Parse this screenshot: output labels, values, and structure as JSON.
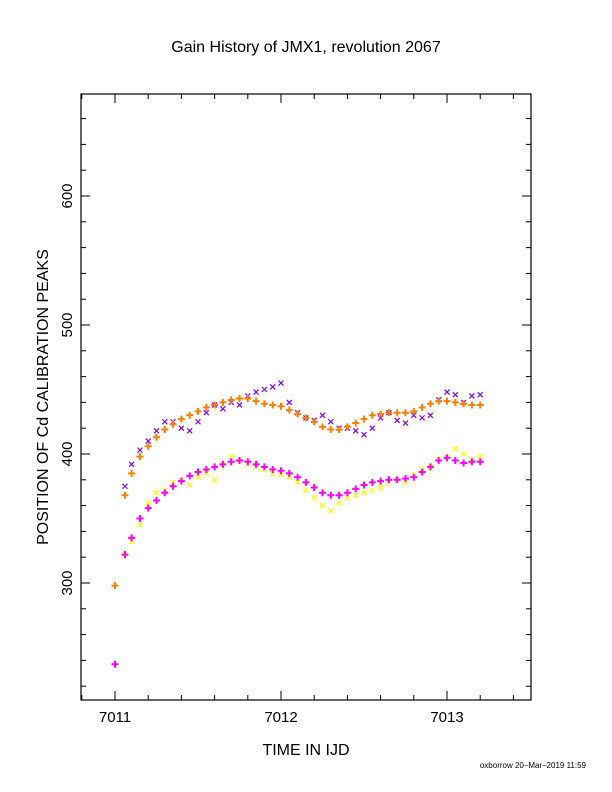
{
  "chart_data": {
    "type": "scatter",
    "title": "Gain History of JMX1, revolution 2067",
    "xlabel": "TIME IN IJD",
    "ylabel": "POSITION OF Cd CALIBRATION PEAKS",
    "xlim": [
      7010.8,
      7013.5
    ],
    "ylim": [
      210,
      680
    ],
    "x_ticks": [
      7011,
      7012,
      7013
    ],
    "x_tick_labels": [
      "7011",
      "7012",
      "7013"
    ],
    "y_ticks": [
      300,
      400,
      500,
      600
    ],
    "y_tick_labels": [
      "300",
      "400",
      "500",
      "600"
    ],
    "grid": false,
    "legend": "none",
    "series": [
      {
        "marker": "x",
        "color": "#7f00ff",
        "x": [
          7011.06,
          7011.1,
          7011.15,
          7011.2,
          7011.25,
          7011.3,
          7011.35,
          7011.4,
          7011.45,
          7011.5,
          7011.55,
          7011.6,
          7011.65,
          7011.7,
          7011.75,
          7011.8,
          7011.85,
          7011.9,
          7011.95,
          7012.0,
          7012.05,
          7012.1,
          7012.15,
          7012.2,
          7012.25,
          7012.3,
          7012.35,
          7012.4,
          7012.45,
          7012.5,
          7012.55,
          7012.6,
          7012.65,
          7012.7,
          7012.75,
          7012.8,
          7012.85,
          7012.9,
          7012.95,
          7013.0,
          7013.05,
          7013.1,
          7013.15,
          7013.2
        ],
        "y": [
          375,
          392,
          403,
          410,
          418,
          425,
          425,
          420,
          418,
          425,
          432,
          438,
          435,
          440,
          438,
          445,
          448,
          450,
          452,
          455,
          440,
          432,
          428,
          426,
          430,
          425,
          420,
          420,
          418,
          415,
          420,
          428,
          432,
          426,
          424,
          430,
          428,
          430,
          442,
          448,
          446,
          440,
          445,
          446
        ]
      },
      {
        "marker": "x",
        "color": "#ffff00",
        "x": [
          7011.06,
          7011.1,
          7011.15,
          7011.2,
          7011.25,
          7011.3,
          7011.35,
          7011.4,
          7011.45,
          7011.5,
          7011.55,
          7011.6,
          7011.65,
          7011.7,
          7011.75,
          7011.8,
          7011.85,
          7011.9,
          7011.95,
          7012.0,
          7012.05,
          7012.1,
          7012.15,
          7012.2,
          7012.25,
          7012.3,
          7012.35,
          7012.4,
          7012.45,
          7012.5,
          7012.55,
          7012.6,
          7012.65,
          7012.7,
          7012.75,
          7012.8,
          7012.85,
          7012.9,
          7012.95,
          7013.0,
          7013.05,
          7013.1,
          7013.15,
          7013.2
        ],
        "y": [
          322,
          332,
          345,
          362,
          370,
          372,
          378,
          380,
          376,
          382,
          385,
          380,
          392,
          398,
          395,
          392,
          390,
          388,
          385,
          384,
          382,
          378,
          372,
          366,
          360,
          356,
          362,
          366,
          368,
          370,
          372,
          374,
          378,
          380,
          378,
          384,
          388,
          390,
          396,
          398,
          404,
          400,
          396,
          398
        ]
      },
      {
        "marker": "+",
        "color": "#ff7f00",
        "x": [
          7011.0,
          7011.06,
          7011.1,
          7011.15,
          7011.2,
          7011.25,
          7011.3,
          7011.35,
          7011.4,
          7011.45,
          7011.5,
          7011.55,
          7011.6,
          7011.65,
          7011.7,
          7011.75,
          7011.8,
          7011.85,
          7011.9,
          7011.95,
          7012.0,
          7012.05,
          7012.1,
          7012.15,
          7012.2,
          7012.25,
          7012.3,
          7012.35,
          7012.4,
          7012.45,
          7012.5,
          7012.55,
          7012.6,
          7012.65,
          7012.7,
          7012.75,
          7012.8,
          7012.85,
          7012.9,
          7012.95,
          7013.0,
          7013.05,
          7013.1,
          7013.15,
          7013.2
        ],
        "y": [
          298,
          368,
          385,
          398,
          406,
          413,
          419,
          423,
          427,
          430,
          433,
          436,
          438,
          440,
          442,
          443,
          443,
          441,
          439,
          438,
          437,
          434,
          431,
          428,
          425,
          421,
          419,
          419,
          421,
          424,
          427,
          430,
          431,
          432,
          432,
          432,
          433,
          436,
          439,
          441,
          441,
          440,
          439,
          438,
          438
        ]
      },
      {
        "marker": "+",
        "color": "#ff00ff",
        "x": [
          7011.0,
          7011.06,
          7011.1,
          7011.15,
          7011.2,
          7011.25,
          7011.3,
          7011.35,
          7011.4,
          7011.45,
          7011.5,
          7011.55,
          7011.6,
          7011.65,
          7011.7,
          7011.75,
          7011.8,
          7011.85,
          7011.9,
          7011.95,
          7012.0,
          7012.05,
          7012.1,
          7012.15,
          7012.2,
          7012.25,
          7012.3,
          7012.35,
          7012.4,
          7012.45,
          7012.5,
          7012.55,
          7012.6,
          7012.65,
          7012.7,
          7012.75,
          7012.8,
          7012.85,
          7012.9,
          7012.95,
          7013.0,
          7013.05,
          7013.1,
          7013.15,
          7013.2
        ],
        "y": [
          237,
          322,
          335,
          350,
          358,
          364,
          370,
          375,
          379,
          383,
          386,
          388,
          390,
          392,
          394,
          395,
          394,
          392,
          390,
          388,
          387,
          385,
          382,
          378,
          374,
          370,
          368,
          368,
          370,
          373,
          376,
          378,
          379,
          380,
          380,
          381,
          382,
          386,
          390,
          395,
          397,
          395,
          393,
          394,
          394
        ]
      }
    ],
    "footer": "oxborrow 20–Mar–2019 11:59"
  }
}
